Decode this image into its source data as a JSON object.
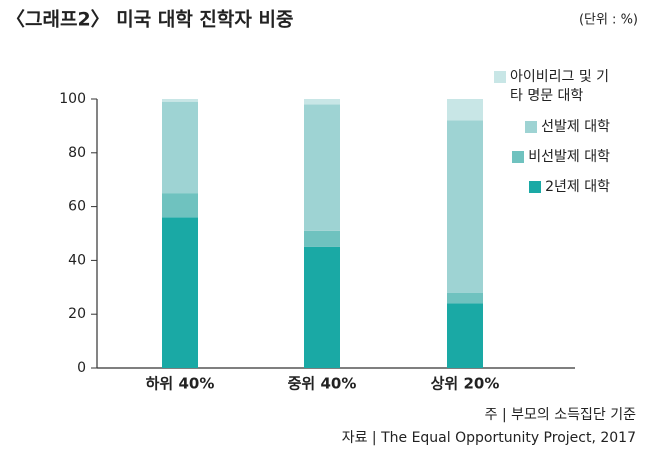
{
  "chart_data": {
    "type": "stacked_bar",
    "title": "〈그래프2〉 미국 대학 진학자 비중",
    "unit_note": "(단위 : %)",
    "notes": [
      "주 | 부모의 소득집단 기준",
      "자료 | The Equal Opportunity Project, 2017"
    ],
    "categories": [
      "하위 40%",
      "중위 40%",
      "상위 20%"
    ],
    "series": [
      {
        "name": "2년제 대학",
        "color": "#1aa9a5",
        "values": [
          56,
          45,
          24
        ]
      },
      {
        "name": "비선발제 대학",
        "color": "#6fc2bf",
        "values": [
          9,
          6,
          4
        ]
      },
      {
        "name": "선발제 대학",
        "color": "#9ed3d3",
        "values": [
          34,
          47,
          64
        ]
      },
      {
        "name": "아이비리그 및 기타 명문 대학",
        "color": "#c8e6e6",
        "values": [
          1,
          2,
          8
        ]
      }
    ],
    "ylim": [
      0,
      100
    ],
    "yticks": [
      0,
      20,
      40,
      60,
      80,
      100
    ],
    "grid": false
  }
}
